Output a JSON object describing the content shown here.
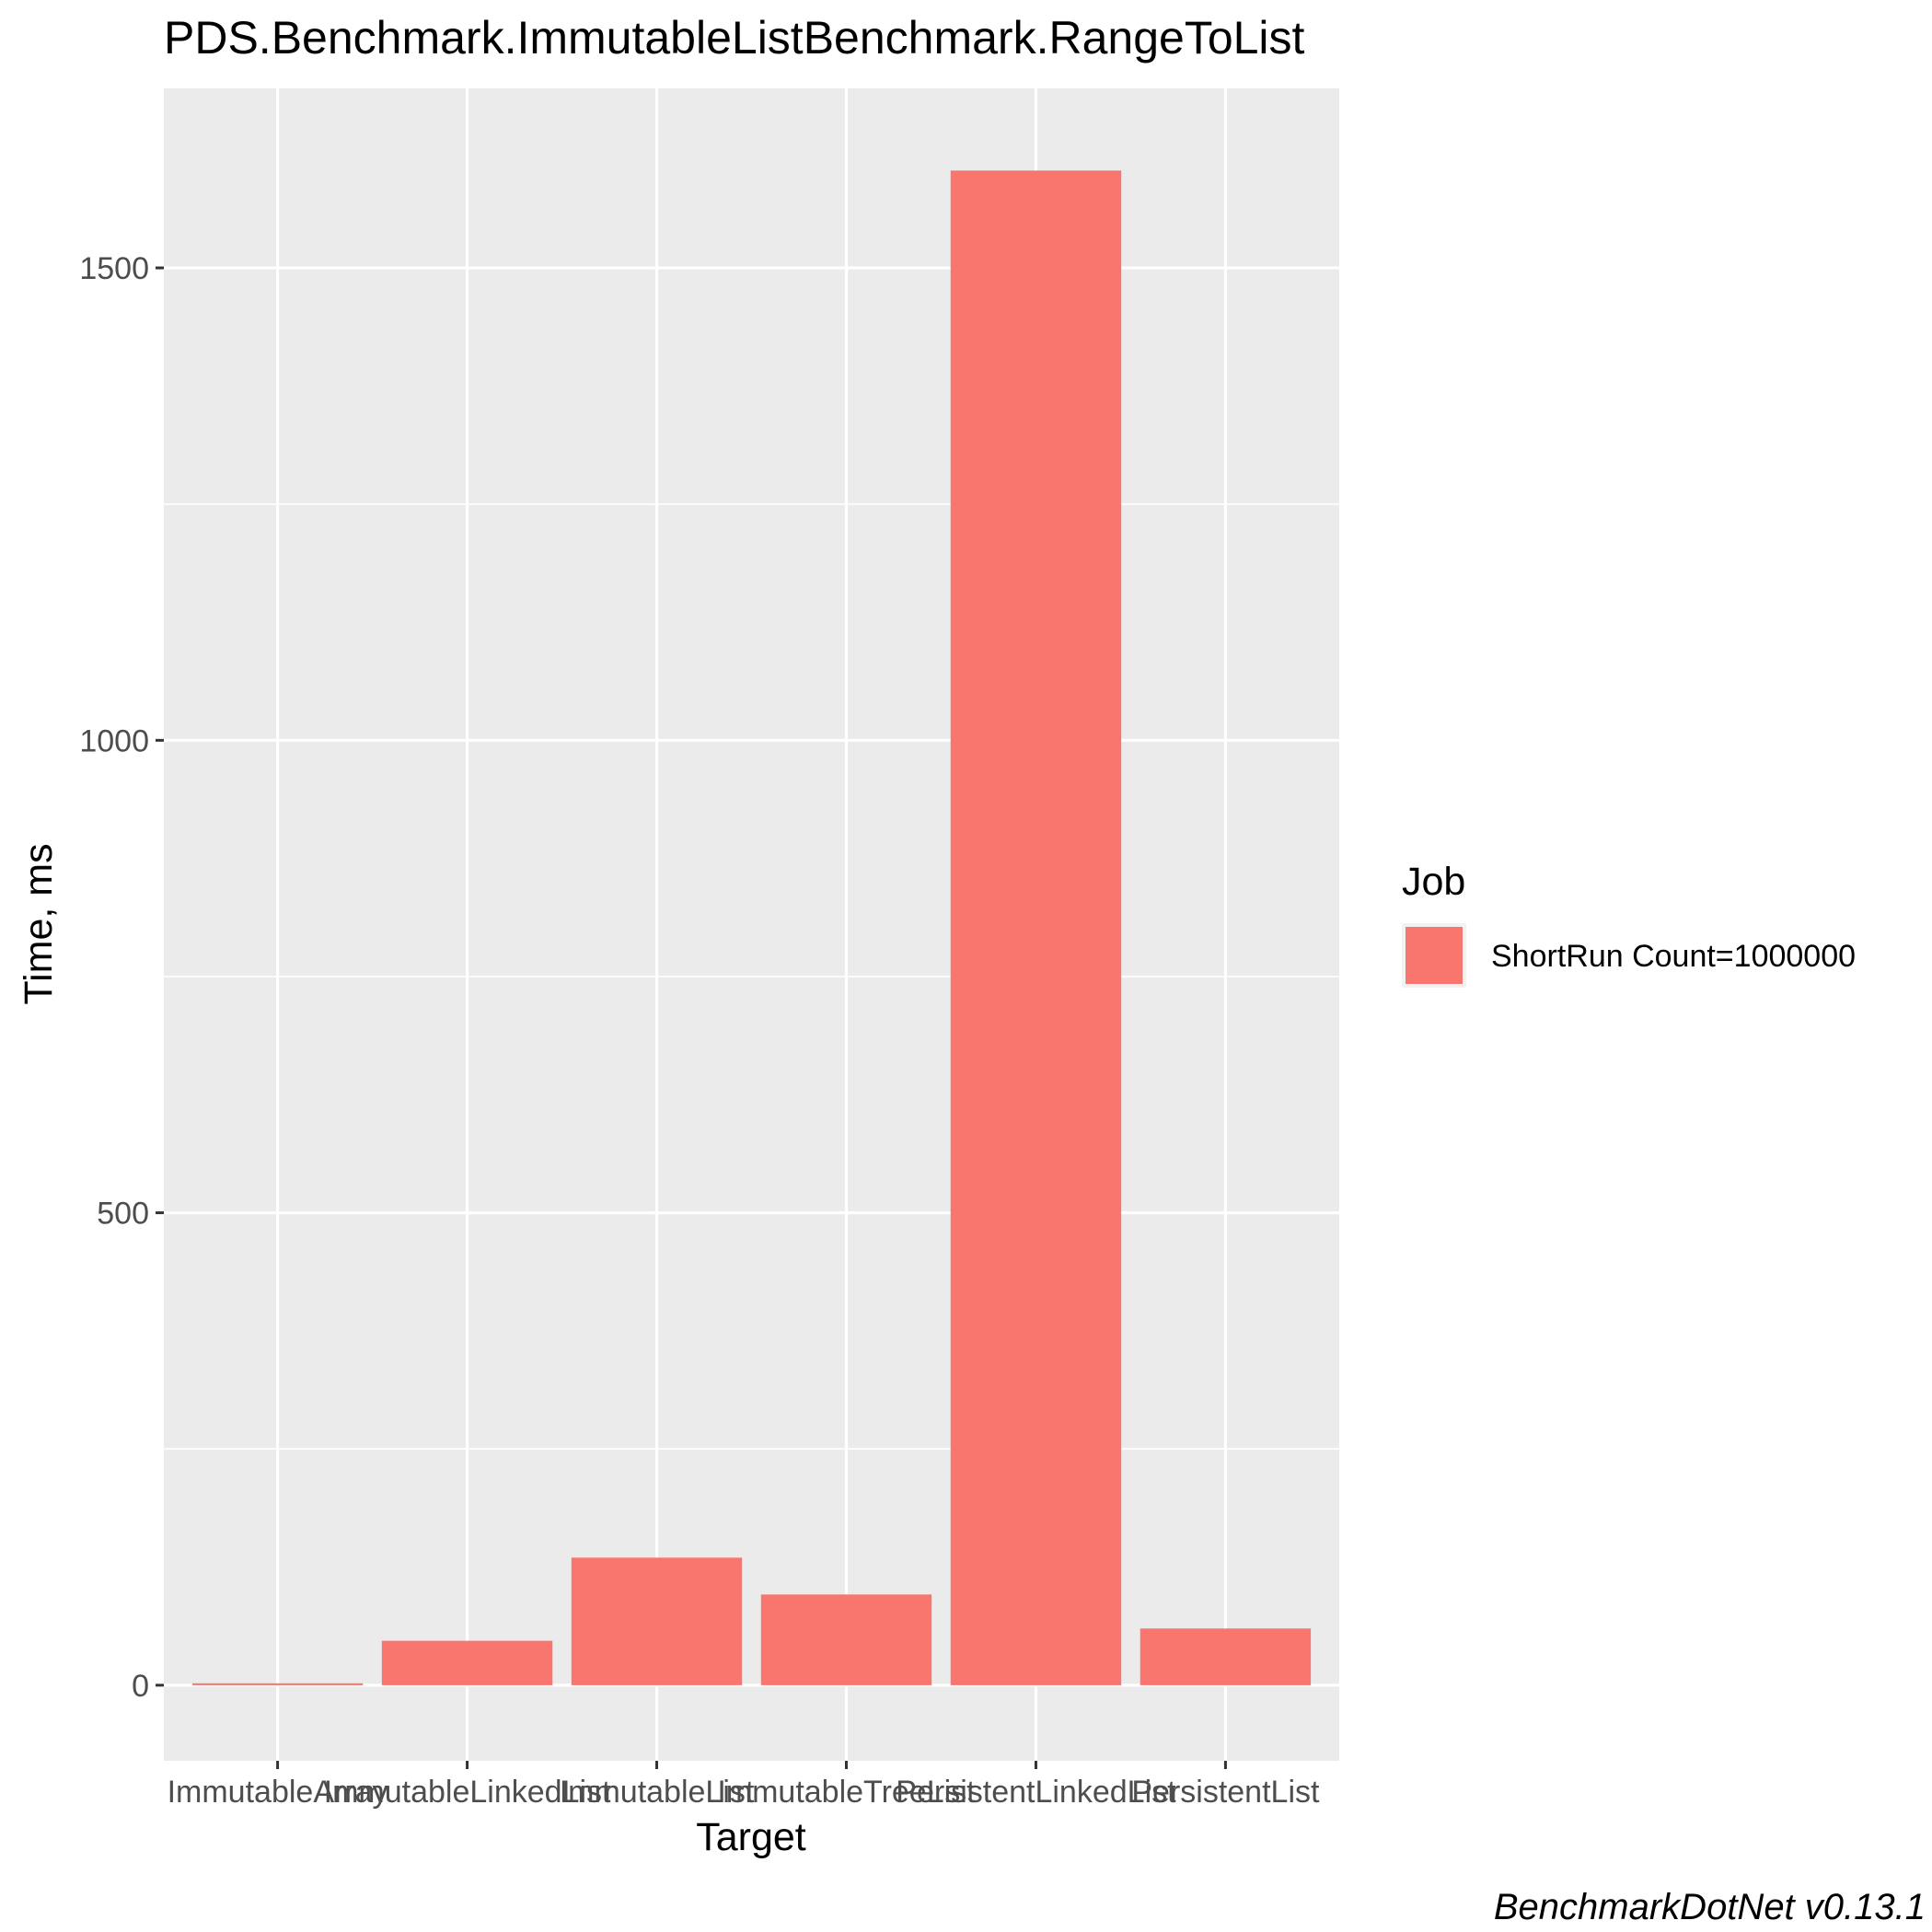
{
  "chart_data": {
    "type": "bar",
    "title": "PDS.Benchmark.ImmutableListBenchmark.RangeToList",
    "xlabel": "Target",
    "ylabel": "Time, ms",
    "categories": [
      "ImmutableArray",
      "ImmutableLinkedList",
      "ImmutableList",
      "ImmutableTreeList",
      "PersistentLinkedList",
      "PersistentList"
    ],
    "series": [
      {
        "name": "ShortRun Count=1000000",
        "values": [
          2,
          47,
          135,
          96,
          1603,
          60
        ],
        "color": "#f8766d"
      }
    ],
    "ylim": [
      -80,
      1690
    ],
    "yticks": [
      0,
      500,
      1000,
      1500
    ],
    "grid": true,
    "panel_background": "#ebebeb",
    "grid_color": "#ffffff",
    "legend": {
      "title": "Job",
      "position": "right"
    },
    "caption": "BenchmarkDotNet v0.13.1"
  }
}
